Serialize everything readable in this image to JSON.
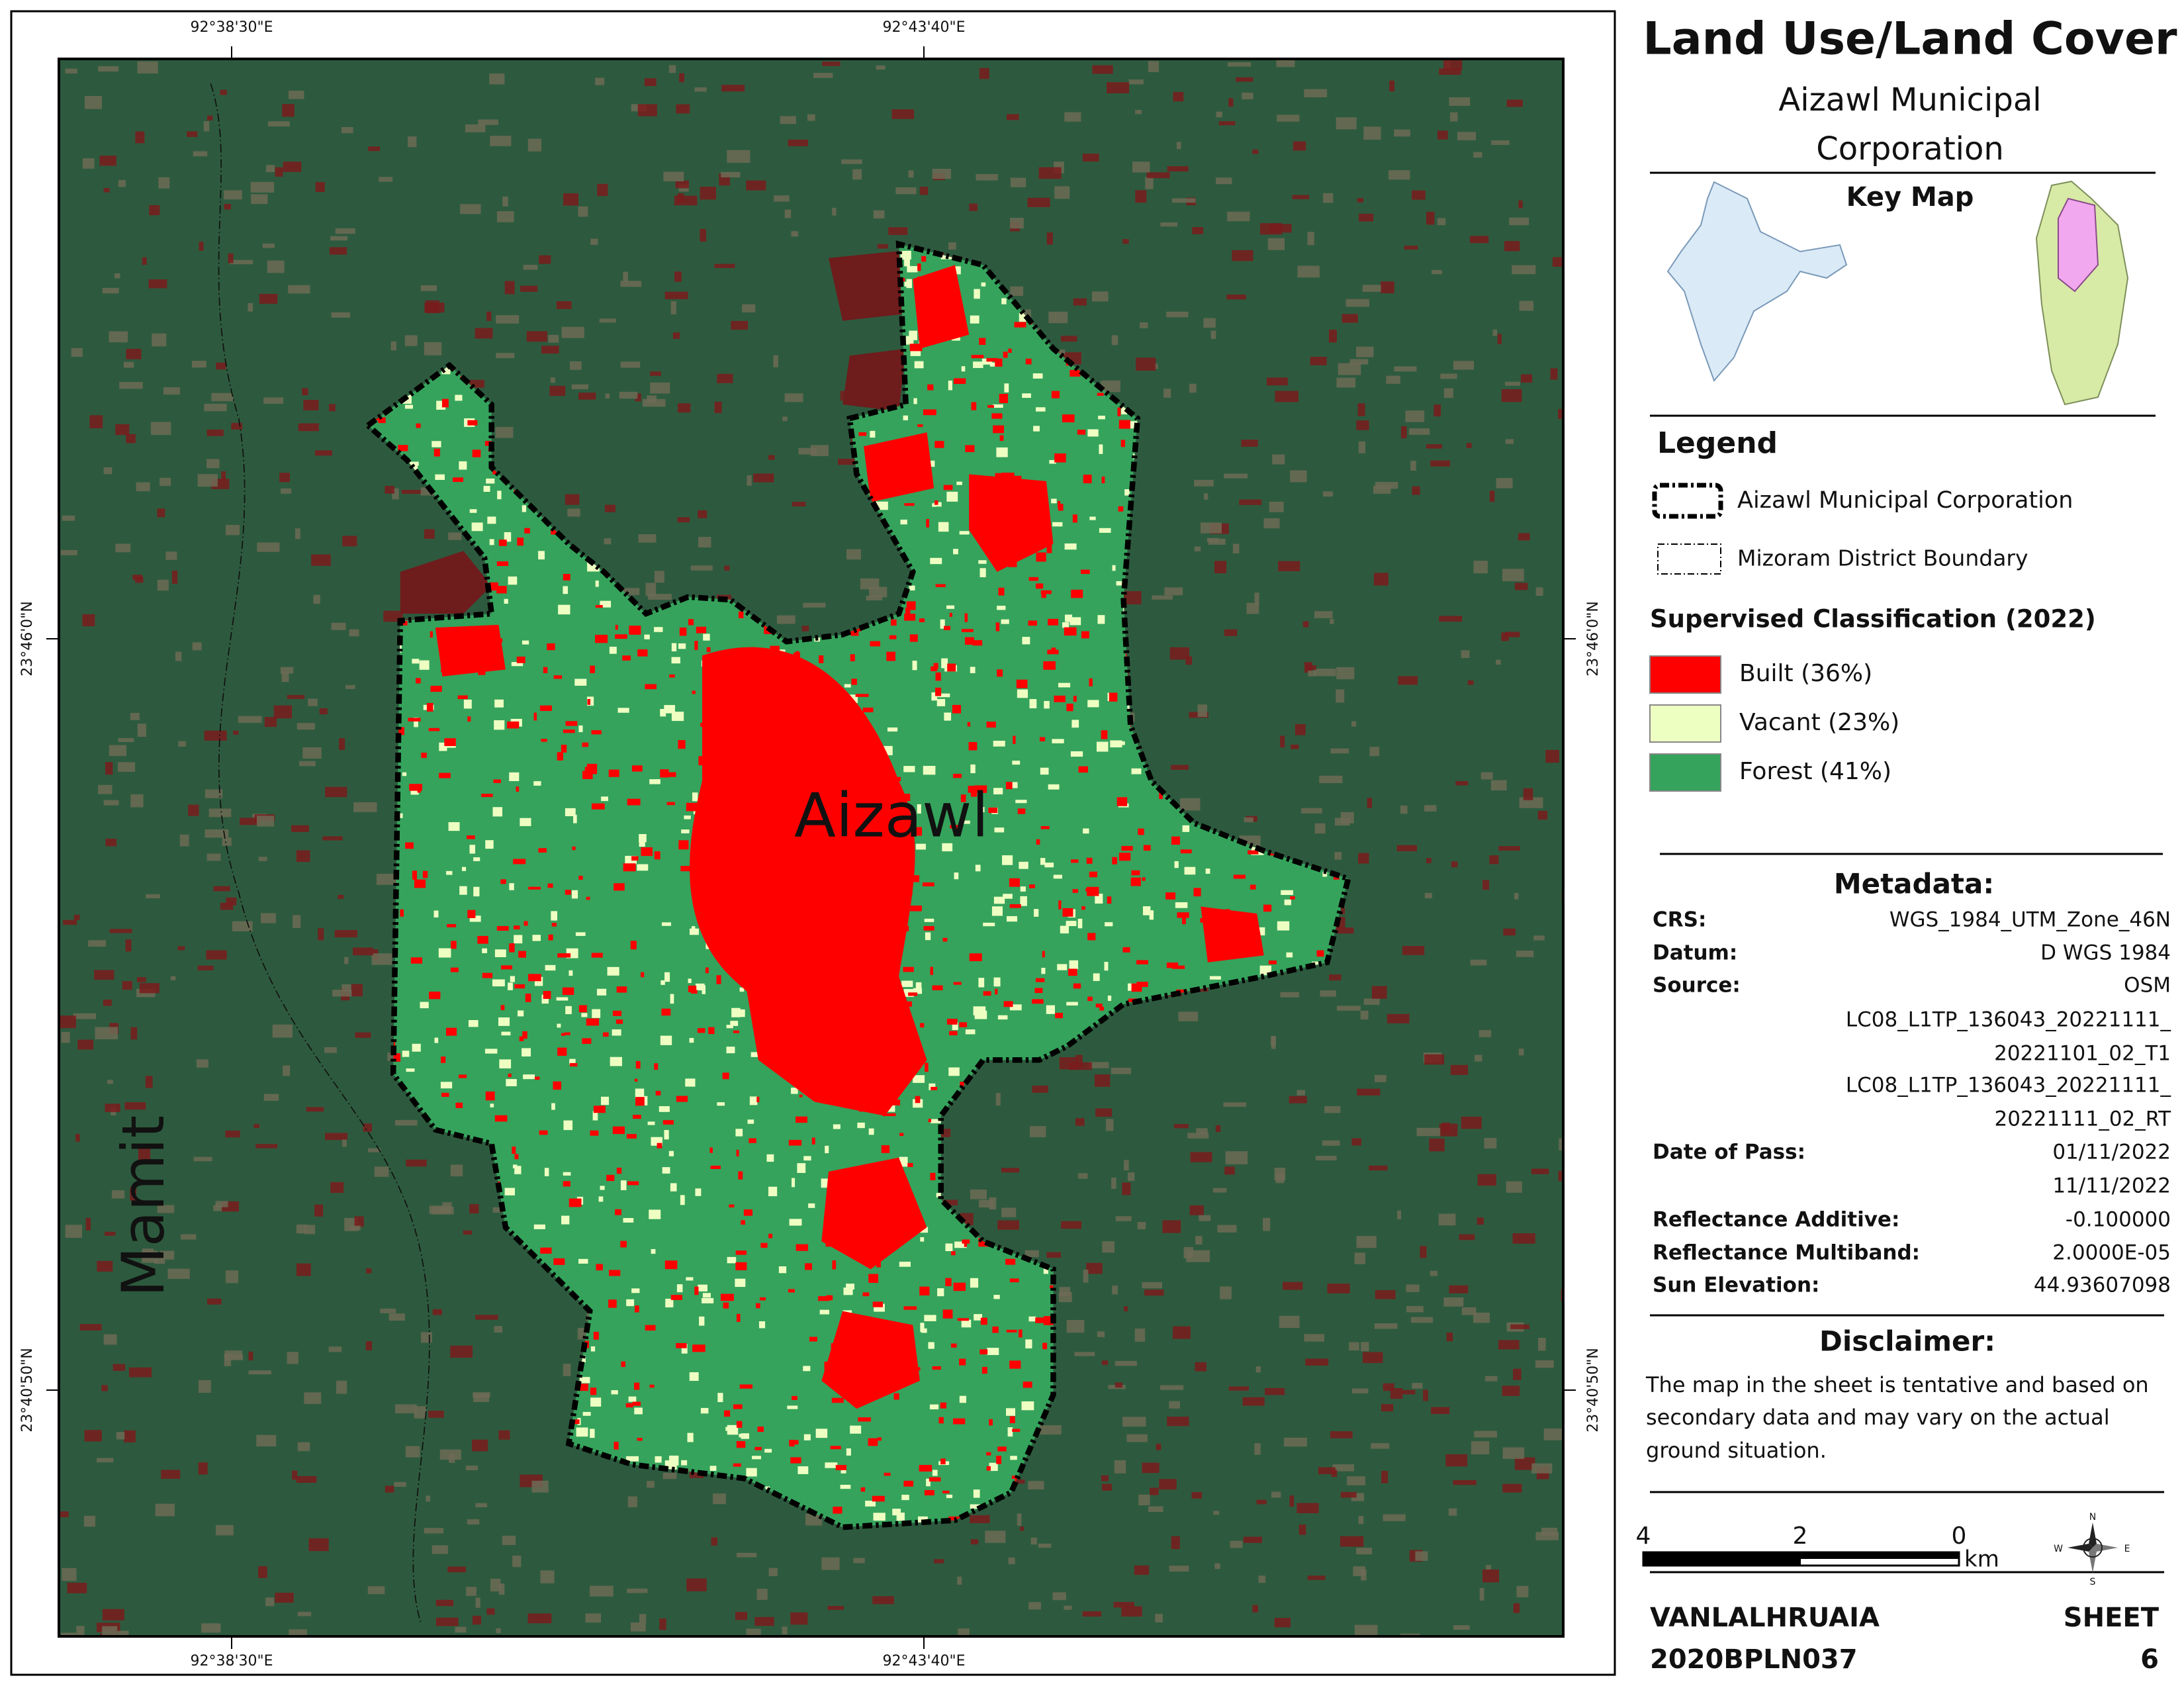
{
  "title": "Land Use/Land Cover",
  "subtitle_lines": [
    "Aizawl Municipal",
    "Corporation"
  ],
  "map": {
    "grid_labels": {
      "top": [
        "92°38'30\"E",
        "92°43'40\"E"
      ],
      "bottom": [
        "92°38'30\"E",
        "92°43'40\"E"
      ],
      "left": [
        "23°46'0\"N",
        "23°40'50\"N"
      ],
      "right": [
        "23°46'0\"N",
        "23°40'50\"N"
      ]
    },
    "place_labels": [
      "Aizawl",
      "Mamit"
    ]
  },
  "key_map": {
    "title": "Key Map"
  },
  "legend": {
    "title": "Legend",
    "boundaries": [
      "Aizawl Municipal Corporation",
      "Mizoram District Boundary"
    ],
    "classification_title": "Supervised Classification (2022)",
    "classes": [
      {
        "label": "Built (36%)",
        "color": "#ff0000"
      },
      {
        "label": "Vacant (23%)",
        "color": "#eeffc2"
      },
      {
        "label": "Forest (41%)",
        "color": "#35a35c"
      }
    ]
  },
  "metadata": {
    "title": "Metadata:",
    "rows": [
      {
        "label": "CRS:",
        "values": [
          "WGS_1984_UTM_Zone_46N"
        ]
      },
      {
        "label": "Datum:",
        "values": [
          "D WGS 1984"
        ]
      },
      {
        "label": "Source:",
        "values": [
          "OSM",
          "LC08_L1TP_136043_20221111_",
          "20221101_02_T1",
          "LC08_L1TP_136043_20221111_",
          "20221111_02_RT"
        ]
      },
      {
        "label": "Date of Pass:",
        "values": [
          "01/11/2022",
          "11/11/2022"
        ]
      },
      {
        "label": "Reflectance Additive:",
        "values": [
          "-0.100000"
        ]
      },
      {
        "label": "Reflectance Multiband:",
        "values": [
          "2.0000E-05"
        ]
      },
      {
        "label": "Sun Elevation:",
        "values": [
          "44.93607098"
        ]
      }
    ]
  },
  "disclaimer": {
    "title": "Disclaimer:",
    "lines": [
      "The map in the sheet is tentative and based on",
      "secondary data and may vary on the actual",
      "ground situation."
    ]
  },
  "scale_bar": {
    "labels": [
      "4",
      "2",
      "0"
    ],
    "unit": "km"
  },
  "compass": [
    "N",
    "E",
    "S",
    "W"
  ],
  "footer": {
    "author": "VANLALHRUAIA",
    "id": "2020BPLN037",
    "sheet_label": "SHEET",
    "sheet_number": "6"
  }
}
